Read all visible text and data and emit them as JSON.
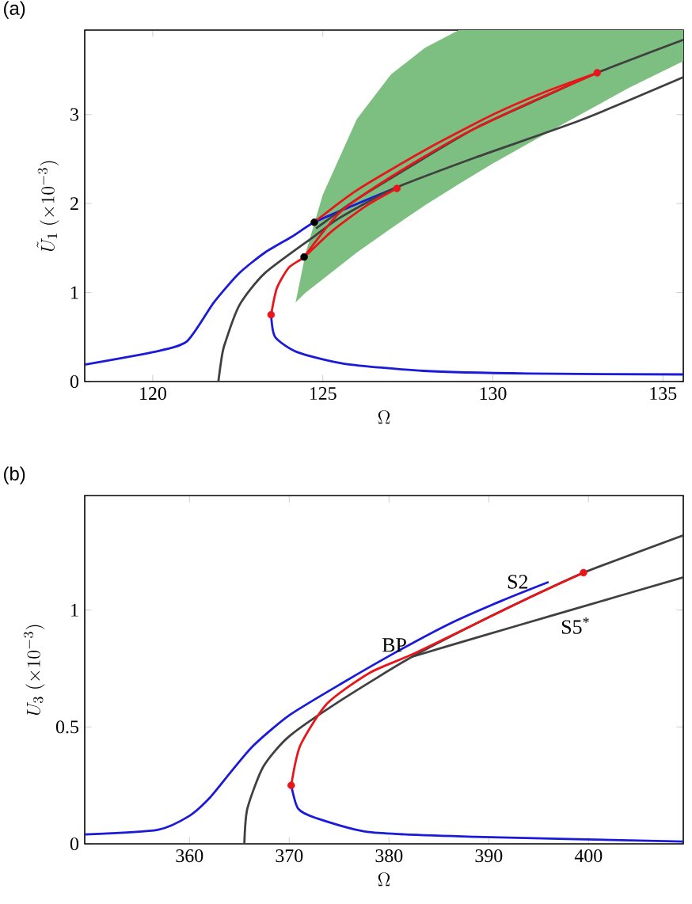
{
  "chart_data": [
    {
      "type": "line",
      "title": "(a)",
      "xlabel": "\\Omega",
      "ylabel": "\\tilde{U}_1\\ (\\times10^{-3})",
      "xlim": [
        118,
        135.6
      ],
      "ylim": [
        0,
        3.95
      ],
      "xticks": [
        120,
        125,
        130,
        135
      ],
      "yticks": [
        0,
        1,
        2,
        3
      ],
      "series": [
        {
          "type": "area",
          "color": "#7dbf80",
          "x": [
            124.2,
            124.5,
            125,
            126,
            127,
            128,
            129,
            130,
            132,
            134,
            135.6
          ],
          "values": [
            null,
            null,
            null,
            null,
            null,
            null,
            null,
            null,
            null,
            null,
            null
          ],
          "lower": [
            0.89,
            1.0,
            1.15,
            1.45,
            1.72,
            1.98,
            2.22,
            2.45,
            2.88,
            3.3,
            3.6
          ],
          "upper": [
            0.89,
            1.45,
            2.1,
            2.95,
            3.45,
            3.75,
            3.95,
            3.95,
            3.95,
            3.95,
            3.95
          ]
        },
        {
          "color": "#1a1ad8",
          "x": [
            118,
            120,
            121,
            121.8,
            122.55,
            123.3,
            124.1,
            124.75,
            125.9,
            127.1
          ],
          "values": [
            0.19,
            0.33,
            0.45,
            0.89,
            1.22,
            1.45,
            1.63,
            1.79,
            1.98,
            2.17
          ]
        },
        {
          "color": "#1a1ad8",
          "x": [
            123.48,
            123.6,
            124.25,
            125.64,
            127.96,
            131.05,
            135.6
          ],
          "values": [
            0.75,
            0.5,
            0.33,
            0.2,
            0.12,
            0.09,
            0.08
          ]
        },
        {
          "color": "#404040",
          "x": [
            121.93,
            122.0,
            122.1,
            122.55,
            123.3,
            124.74,
            125.5,
            127.1,
            129.5,
            132.6,
            135.6
          ],
          "values": [
            0,
            0.2,
            0.4,
            0.86,
            1.22,
            1.63,
            1.84,
            2.17,
            2.52,
            2.94,
            3.42
          ]
        },
        {
          "color": "#404040",
          "x": [
            124.8,
            126,
            127.5,
            129.5,
            131.5,
            133.07,
            135.6
          ],
          "values": [
            1.72,
            2.05,
            2.4,
            2.85,
            3.2,
            3.47,
            3.84
          ]
        },
        {
          "color": "#e8161b",
          "x": [
            123.48,
            123.65,
            124.0,
            124.45,
            125.3,
            126.3,
            127.18
          ],
          "values": [
            0.75,
            1.05,
            1.28,
            1.4,
            1.7,
            1.98,
            2.17
          ]
        },
        {
          "color": "#e8161b",
          "x": [
            124.75,
            126,
            128,
            130,
            131.5,
            133.07
          ],
          "values": [
            1.79,
            2.15,
            2.6,
            3.0,
            3.25,
            3.47
          ]
        },
        {
          "color": "#e8161b",
          "x": [
            124.45,
            125.5,
            127,
            129,
            131,
            133.07
          ],
          "values": [
            1.4,
            1.9,
            2.3,
            2.75,
            3.12,
            3.47
          ]
        },
        {
          "type": "scatter",
          "color": "#000000",
          "marker": "circle",
          "x": [
            124.75,
            124.45
          ],
          "values": [
            1.79,
            1.4
          ]
        },
        {
          "type": "scatter",
          "color": "#e8161b",
          "marker": "circle",
          "x": [
            123.48,
            127.18,
            133.07
          ],
          "values": [
            0.75,
            2.17,
            3.47
          ]
        }
      ]
    },
    {
      "type": "line",
      "title": "(b)",
      "xlabel": "\\Omega",
      "ylabel": "U_3\\ (\\times10^{-3})",
      "xlim": [
        349.5,
        409.5
      ],
      "ylim": [
        0,
        1.49
      ],
      "xticks": [
        360,
        370,
        380,
        390,
        400
      ],
      "yticks": [
        0,
        0.5,
        1
      ],
      "annotations": [
        {
          "text": "BP",
          "x": 382.3,
          "y": 0.8
        },
        {
          "text": "S2",
          "x": 392.9,
          "y": 1.07
        },
        {
          "text": "S5$^{*}$",
          "x": 398.7,
          "y": 0.99
        }
      ],
      "series": [
        {
          "color": "#1a1ad8",
          "x": [
            349.5,
            356.8,
            360,
            362.1,
            364.2,
            366.4,
            370,
            375.4,
            380.7,
            386,
            391.3,
            396
          ],
          "values": [
            0.04,
            0.06,
            0.12,
            0.2,
            0.31,
            0.42,
            0.55,
            0.69,
            0.82,
            0.94,
            1.04,
            1.12
          ]
        },
        {
          "color": "#1a1ad8",
          "x": [
            370.2,
            370.9,
            372.7,
            378,
            388.6,
            409.5
          ],
          "values": [
            0.25,
            0.15,
            0.11,
            0.05,
            0.03,
            0.01
          ]
        },
        {
          "color": "#404040",
          "x": [
            365.5,
            365.8,
            367.4,
            370,
            375.4,
            382.3,
            388.6,
            393.9,
            399.5,
            409.5
          ],
          "values": [
            0,
            0.15,
            0.33,
            0.46,
            0.62,
            0.8,
            0.94,
            1.05,
            1.16,
            1.32
          ]
        },
        {
          "color": "#404040",
          "x": [
            382.3,
            388.6,
            396.6,
            409.5
          ],
          "values": [
            0.8,
            0.88,
            0.98,
            1.14
          ]
        },
        {
          "color": "#e8161b",
          "x": [
            370.2,
            371.1,
            373.8,
            378,
            382.3,
            388.6,
            393.9,
            399.5
          ],
          "values": [
            0.25,
            0.42,
            0.6,
            0.73,
            0.81,
            0.94,
            1.05,
            1.16
          ]
        },
        {
          "type": "scatter",
          "color": "#e8161b",
          "marker": "circle",
          "x": [
            370.2,
            399.5
          ],
          "values": [
            0.25,
            1.16
          ]
        }
      ]
    }
  ]
}
